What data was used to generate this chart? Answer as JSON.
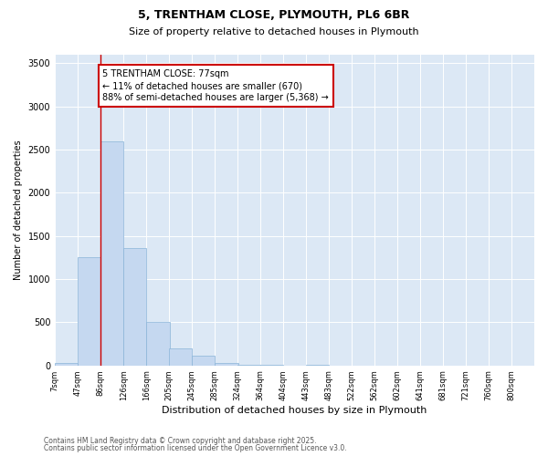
{
  "title_line1": "5, TRENTHAM CLOSE, PLYMOUTH, PL6 6BR",
  "title_line2": "Size of property relative to detached houses in Plymouth",
  "xlabel": "Distribution of detached houses by size in Plymouth",
  "ylabel": "Number of detached properties",
  "bar_color": "#c5d8f0",
  "bar_edge_color": "#8ab4d8",
  "background_color": "#dce8f5",
  "grid_color": "#ffffff",
  "annotation_box_color": "#cc0000",
  "annotation_line1": "5 TRENTHAM CLOSE: 77sqm",
  "annotation_line2": "← 11% of detached houses are smaller (670)",
  "annotation_line3": "88% of semi-detached houses are larger (5,368) →",
  "red_line_x": 86,
  "categories": [
    "7sqm",
    "47sqm",
    "86sqm",
    "126sqm",
    "166sqm",
    "205sqm",
    "245sqm",
    "285sqm",
    "324sqm",
    "364sqm",
    "404sqm",
    "443sqm",
    "483sqm",
    "522sqm",
    "562sqm",
    "602sqm",
    "641sqm",
    "681sqm",
    "721sqm",
    "760sqm",
    "800sqm"
  ],
  "bin_edges": [
    7,
    47,
    86,
    126,
    166,
    205,
    245,
    285,
    324,
    364,
    404,
    443,
    483,
    522,
    562,
    602,
    641,
    681,
    721,
    760,
    800
  ],
  "bar_heights": [
    30,
    1250,
    2600,
    1360,
    500,
    200,
    110,
    30,
    10,
    5,
    0,
    5,
    0,
    0,
    0,
    0,
    0,
    0,
    0,
    0
  ],
  "ylim": [
    0,
    3600
  ],
  "yticks": [
    0,
    500,
    1000,
    1500,
    2000,
    2500,
    3000,
    3500
  ],
  "footer_line1": "Contains HM Land Registry data © Crown copyright and database right 2025.",
  "footer_line2": "Contains public sector information licensed under the Open Government Licence v3.0."
}
